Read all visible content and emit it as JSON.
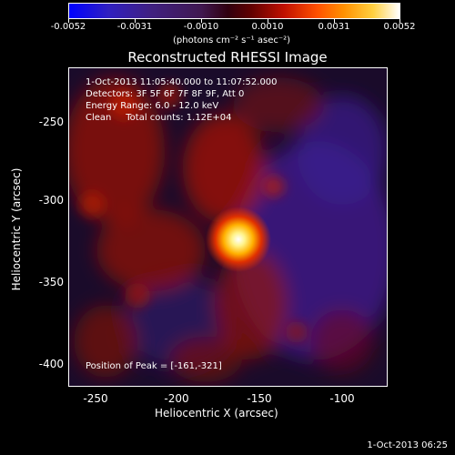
{
  "colorbar": {
    "ticks": [
      "-0.0052",
      "-0.0031",
      "-0.0010",
      "0.0010",
      "0.0031",
      "0.0052"
    ],
    "unit_label": "(photons cm⁻² s⁻¹ asec⁻²)"
  },
  "title": "Reconstructed RHESSI Image",
  "info": {
    "time_range": "1-Oct-2013 11:05:40.000 to 11:07:52.000",
    "detectors": "Detectors: 3F 5F 6F 7F 8F 9F, Att 0",
    "energy": "Energy Range: 6.0 - 12.0 keV",
    "clean": "Clean     Total counts: 1.12E+04",
    "peak": "Position of Peak = [-161,-321]"
  },
  "axes": {
    "xlabel": "Heliocentric X (arcsec)",
    "ylabel": "Heliocentric Y (arcsec)",
    "xticks": [
      "-250",
      "-200",
      "-150",
      "-100"
    ],
    "yticks": [
      "-250",
      "-300",
      "-350",
      "-400"
    ]
  },
  "timestamp": "1-Oct-2013 06:25",
  "colors": {
    "background": "#000000",
    "text": "#ffffff"
  }
}
